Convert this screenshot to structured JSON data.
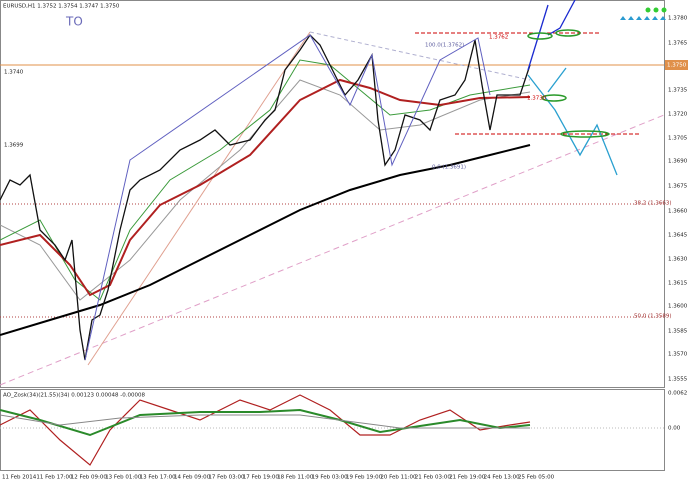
{
  "header": {
    "symbol": "EURUSD,H1 1.3752 1.3754 1.3747 1.3750",
    "mark": "TO"
  },
  "price_axis": [
    "1.3780",
    "1.3765",
    "1.3735",
    "1.3720",
    "1.3705",
    "1.3690",
    "1.3675",
    "1.3660",
    "1.3645",
    "1.3630",
    "1.3615",
    "1.3600",
    "1.3585",
    "1.3570",
    "1.3555"
  ],
  "current_price": "1.3750",
  "left_labels": [
    "1.3740",
    "1.3699"
  ],
  "fib_labels": [
    "100.0(1.3762)",
    "0.0 (1.3691)",
    "38.2 (1.3663)",
    "50.0 (1.3589)"
  ],
  "price_boxes": [
    "1.3762",
    "1.3730"
  ],
  "indicator": {
    "title": "AO_Zosk(34)(21.55)(34) 0.00123 0.00048 -0.00008",
    "axis": [
      "0.0062",
      "0.00"
    ]
  },
  "time_axis": [
    "11 Feb 2014",
    "11 Feb 17:00",
    "12 Feb 09:00",
    "13 Feb 01:00",
    "13 Feb 17:00",
    "14 Feb 09:00",
    "17 Feb 03:00",
    "17 Feb 19:00",
    "18 Feb 11:00",
    "19 Feb 03:00",
    "19 Feb 19:00",
    "20 Feb 11:00",
    "21 Feb 03:00",
    "21 Feb 19:00",
    "24 Feb 13:00",
    "25 Feb 05:00"
  ]
}
